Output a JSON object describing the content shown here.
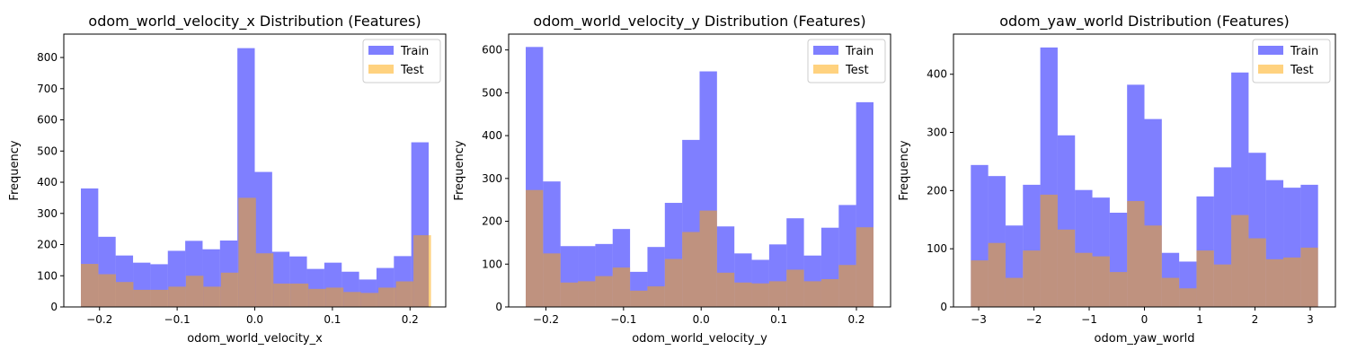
{
  "figure": {
    "background": "#ffffff"
  },
  "colors": {
    "train": "#0000ff",
    "test": "#ffa500",
    "train_alpha": 0.5,
    "test_alpha": 0.5
  },
  "chart_data": [
    {
      "type": "histogram",
      "title": "odom_world_velocity_x Distribution (Features)",
      "xlabel": "odom_world_velocity_x",
      "ylabel": "Frequency",
      "xlim": [
        -0.246,
        0.246
      ],
      "ylim": [
        0,
        875
      ],
      "xticks": [
        -0.2,
        -0.1,
        0.0,
        0.1,
        0.2
      ],
      "xtick_labels": [
        "−0.2",
        "−0.1",
        "0.0",
        "0.1",
        "0.2"
      ],
      "yticks": [
        0,
        100,
        200,
        300,
        400,
        500,
        600,
        700,
        800
      ],
      "yticks_labels": [
        "0",
        "100",
        "200",
        "300",
        "400",
        "500",
        "600",
        "700",
        "800"
      ],
      "legend": "top-right",
      "series": [
        {
          "name": "Train",
          "bin_start": -0.224,
          "bin_end": 0.224,
          "values": [
            380,
            225,
            165,
            142,
            137,
            180,
            212,
            185,
            213,
            830,
            433,
            177,
            162,
            122,
            142,
            113,
            88,
            125,
            163,
            528
          ]
        },
        {
          "name": "Test",
          "bin_start": -0.224,
          "bin_end": 0.227,
          "values": [
            138,
            105,
            80,
            55,
            55,
            65,
            100,
            65,
            110,
            350,
            172,
            75,
            75,
            58,
            62,
            48,
            45,
            62,
            82,
            230
          ]
        }
      ]
    },
    {
      "type": "histogram",
      "title": "odom_world_velocity_y Distribution (Features)",
      "xlabel": "odom_world_velocity_y",
      "ylabel": "Frequency",
      "xlim": [
        -0.248,
        0.244
      ],
      "ylim": [
        0,
        637
      ],
      "xticks": [
        -0.2,
        -0.1,
        0.0,
        0.1,
        0.2
      ],
      "xtick_labels": [
        "−0.2",
        "−0.1",
        "0.0",
        "0.1",
        "0.2"
      ],
      "yticks": [
        0,
        100,
        200,
        300,
        400,
        500,
        600
      ],
      "yticks_labels": [
        "0",
        "100",
        "200",
        "300",
        "400",
        "500",
        "600"
      ],
      "legend": "top-right",
      "series": [
        {
          "name": "Train",
          "bin_start": -0.226,
          "bin_end": 0.222,
          "values": [
            607,
            293,
            142,
            142,
            147,
            182,
            82,
            140,
            243,
            390,
            550,
            188,
            125,
            110,
            146,
            207,
            120,
            185,
            238,
            478
          ]
        },
        {
          "name": "Test",
          "bin_start": -0.226,
          "bin_end": 0.222,
          "values": [
            273,
            125,
            57,
            60,
            72,
            92,
            38,
            48,
            112,
            175,
            225,
            80,
            57,
            55,
            60,
            87,
            60,
            65,
            98,
            186
          ]
        }
      ]
    },
    {
      "type": "histogram",
      "title": "odom_yaw_world Distribution (Features)",
      "xlabel": "odom_yaw_world",
      "ylabel": "Frequency",
      "xlim": [
        -3.456,
        3.456
      ],
      "ylim": [
        0,
        469
      ],
      "xticks": [
        -3,
        -2,
        -1,
        0,
        1,
        2,
        3
      ],
      "xtick_labels": [
        "−3",
        "−2",
        "−1",
        "0",
        "1",
        "2",
        "3"
      ],
      "yticks": [
        0,
        100,
        200,
        300,
        400
      ],
      "yticks_labels": [
        "0",
        "100",
        "200",
        "300",
        "400"
      ],
      "legend": "top-right",
      "series": [
        {
          "name": "Train",
          "bin_start": -3.142,
          "bin_end": 3.142,
          "values": [
            244,
            225,
            140,
            210,
            446,
            295,
            201,
            188,
            162,
            382,
            323,
            93,
            78,
            190,
            240,
            403,
            265,
            218,
            205,
            210
          ]
        },
        {
          "name": "Test",
          "bin_start": -3.142,
          "bin_end": 3.142,
          "values": [
            80,
            110,
            50,
            97,
            193,
            133,
            93,
            87,
            60,
            182,
            140,
            50,
            32,
            97,
            73,
            158,
            118,
            82,
            85,
            102
          ]
        }
      ]
    }
  ]
}
